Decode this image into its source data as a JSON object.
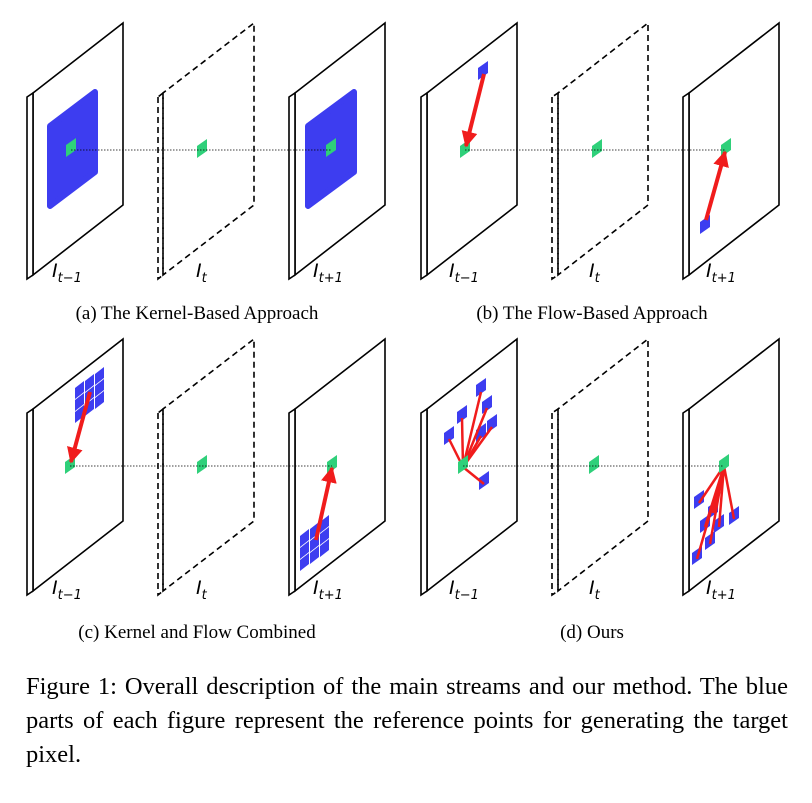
{
  "panels": [
    {
      "id": "a",
      "caption": "(a) The Kernel-Based Approach",
      "frame_labels": [
        {
          "base": "I",
          "sub": "t−1"
        },
        {
          "base": "I",
          "sub": "t"
        },
        {
          "base": "I",
          "sub": "t+1"
        }
      ],
      "blue_patches": [
        "large-square",
        "none",
        "large-square"
      ],
      "arrows": "none"
    },
    {
      "id": "b",
      "caption": "(b) The Flow-Based Approach",
      "frame_labels": [
        {
          "base": "I",
          "sub": "t−1"
        },
        {
          "base": "I",
          "sub": "t"
        },
        {
          "base": "I",
          "sub": "t+1"
        }
      ],
      "blue_patches": [
        "single-point",
        "none",
        "single-point"
      ],
      "arrows": "single"
    },
    {
      "id": "c",
      "caption": "(c) Kernel and Flow Combined",
      "frame_labels": [
        {
          "base": "I",
          "sub": "t−1"
        },
        {
          "base": "I",
          "sub": "t"
        },
        {
          "base": "I",
          "sub": "t+1"
        }
      ],
      "blue_patches": [
        "3x3-grid",
        "none",
        "3x3-grid"
      ],
      "arrows": "single"
    },
    {
      "id": "d",
      "caption": "(d) Ours",
      "frame_labels": [
        {
          "base": "I",
          "sub": "t−1"
        },
        {
          "base": "I",
          "sub": "t"
        },
        {
          "base": "I",
          "sub": "t+1"
        }
      ],
      "blue_patches": [
        "scattered-points",
        "none",
        "scattered-points"
      ],
      "arrows": "multiple"
    }
  ],
  "colors": {
    "reference_blue": "#3d3df0",
    "target_green": "#2fd07a",
    "arrow_red": "#f01c1c",
    "frame_stroke": "#000000"
  },
  "figure_caption": "Figure 1: Overall description of the main streams and our method. The blue parts of each figure represent the reference points for generating the target pixel."
}
